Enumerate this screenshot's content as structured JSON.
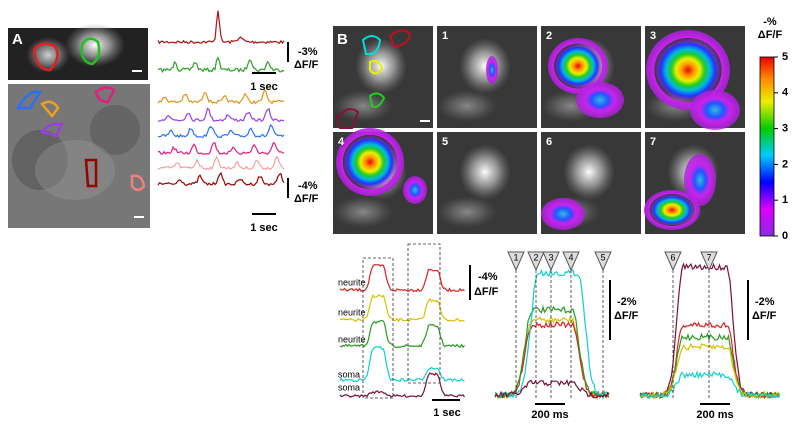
{
  "panel_a": {
    "label": "A",
    "top_scale": {
      "amplitude": "-3%",
      "unit": "ΔF/F",
      "time": "1 sec"
    },
    "bottom_scale": {
      "amplitude": "-4%",
      "unit": "ΔF/F",
      "time": "1 sec"
    }
  },
  "panel_b": {
    "label": "B",
    "frames": [
      "1",
      "2",
      "3",
      "4",
      "5",
      "6",
      "7"
    ],
    "colorbar": {
      "title": [
        "-%",
        "ΔF/F"
      ],
      "lim": [
        0,
        5
      ],
      "ticks": [
        0,
        1,
        2,
        3,
        4,
        5
      ]
    },
    "traces": {
      "labels": [
        "neurite",
        "neurite",
        "neurite",
        "soma",
        "soma"
      ],
      "scale": {
        "amplitude": "-4%",
        "unit": "ΔF/F",
        "time": "1 sec"
      }
    },
    "zoom_left": {
      "markers": [
        "1",
        "2",
        "3",
        "4",
        "5"
      ],
      "scale": {
        "amplitude": "-2%",
        "unit": "ΔF/F",
        "time": "200 ms"
      }
    },
    "zoom_right": {
      "markers": [
        "6",
        "7"
      ],
      "scale": {
        "amplitude": "-2%",
        "unit": "ΔF/F",
        "time": "200 ms"
      }
    }
  }
}
